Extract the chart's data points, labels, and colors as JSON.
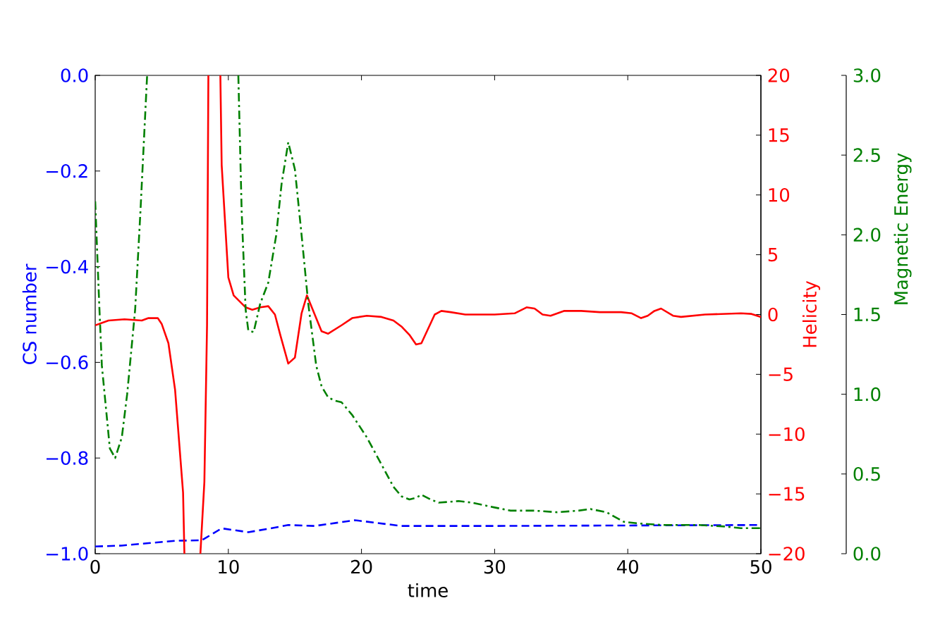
{
  "chart_data": {
    "type": "line",
    "xlabel": "time",
    "ylabel": "CS number",
    "y2label": "Helicity",
    "y3label": "Magnetic Energy",
    "xlim": [
      0,
      50
    ],
    "xticks": [
      0,
      10,
      20,
      30,
      40,
      50
    ],
    "ylim": [
      -1,
      0
    ],
    "yticks": [
      {
        "value": -1,
        "label": "−1.0"
      },
      {
        "value": -0.8,
        "label": "−0.8"
      },
      {
        "value": -0.6,
        "label": "−0.6"
      },
      {
        "value": -0.4,
        "label": "−0.4"
      },
      {
        "value": -0.2,
        "label": "−0.2"
      },
      {
        "value": 0,
        "label": "0.0"
      }
    ],
    "y2lim": [
      -20,
      20
    ],
    "y2ticks": [
      {
        "value": -20,
        "label": "−20"
      },
      {
        "value": -15,
        "label": "−15"
      },
      {
        "value": -10,
        "label": "−10"
      },
      {
        "value": -5,
        "label": "−5"
      },
      0,
      5,
      10,
      15,
      20
    ],
    "y3lim": [
      0,
      3
    ],
    "y3ticks": [
      {
        "value": 0,
        "label": "0.0"
      },
      {
        "value": 0.5,
        "label": "0.5"
      },
      {
        "value": 1,
        "label": "1.0"
      },
      {
        "value": 1.5,
        "label": "1.5"
      },
      {
        "value": 2,
        "label": "2.0"
      },
      {
        "value": 2.5,
        "label": "2.5"
      },
      {
        "value": 3,
        "label": "3.0"
      }
    ],
    "grid": false,
    "series": [
      {
        "axis": "y",
        "color": "#0000ff",
        "line_style": "dashed",
        "x": [
          0,
          2,
          4,
          6,
          8,
          9.5,
          11.5,
          13,
          14.5,
          16.5,
          19.5,
          23,
          30,
          40,
          50
        ],
        "values": [
          -0.985,
          -0.983,
          -0.978,
          -0.973,
          -0.972,
          -0.947,
          -0.955,
          -0.948,
          -0.94,
          -0.942,
          -0.93,
          -0.942,
          -0.942,
          -0.941,
          -0.94
        ]
      },
      {
        "axis": "y2",
        "color": "#ff0000",
        "line_style": "solid",
        "x": [
          0,
          1,
          2.2,
          3.5,
          4,
          4.7,
          5,
          5.5,
          6,
          6.6,
          6.7,
          7.3,
          7.9,
          8.2,
          8.4,
          8.5,
          9,
          9.4,
          9.5,
          10,
          10.4,
          11.3,
          11.8,
          12.4,
          13,
          13.5,
          13.9,
          14.5,
          15,
          15.5,
          15.9,
          17,
          17.5,
          18.5,
          19.3,
          20.4,
          21.5,
          22.4,
          23,
          23.6,
          24.1,
          24.5,
          25,
          25.5,
          26,
          26.7,
          27.8,
          30,
          31.5,
          32.4,
          33,
          33.6,
          34.2,
          35.2,
          36.5,
          37.9,
          39.5,
          40.3,
          41,
          41.5,
          42,
          42.5,
          43.4,
          44,
          45.8,
          48.5,
          49.3,
          50
        ],
        "values": [
          -0.9,
          -0.5,
          -0.4,
          -0.5,
          -0.3,
          -0.3,
          -0.8,
          -2.4,
          -6.3,
          -14.9,
          -20,
          null,
          -20,
          -14,
          -0.9,
          20,
          null,
          20,
          12.5,
          3.1,
          1.6,
          0.6,
          0.4,
          0.6,
          0.7,
          0,
          -1.7,
          -4.1,
          -3.6,
          0.1,
          1.6,
          -1.4,
          -1.6,
          -0.9,
          -0.3,
          -0.1,
          -0.2,
          -0.5,
          -1,
          -1.7,
          -2.5,
          -2.4,
          -1.2,
          0,
          0.3,
          0.2,
          0,
          0,
          0.1,
          0.6,
          0.5,
          0,
          -0.1,
          0.3,
          0.3,
          0.2,
          0.2,
          0.1,
          -0.3,
          -0.1,
          0.3,
          0.5,
          -0.1,
          -0.2,
          0,
          0.1,
          0.05,
          -0.2
        ]
      },
      {
        "axis": "y3",
        "color": "#008000",
        "line_style": "dashdot",
        "x": [
          0,
          0.3,
          0.5,
          1.1,
          1.5,
          2,
          2.4,
          3,
          3.4,
          3.9,
          7,
          10.75,
          11,
          11.3,
          11.5,
          11.9,
          12.4,
          13,
          13.6,
          14,
          14.5,
          15,
          15.5,
          16,
          16.6,
          17,
          17.5,
          18,
          18.5,
          19.3,
          20.4,
          21.5,
          22.4,
          23,
          23.6,
          24.1,
          24.5,
          25.2,
          25.8,
          27.3,
          28.3,
          30,
          31.2,
          32.3,
          33,
          34.7,
          36.3,
          37.2,
          38.4,
          39.7,
          40.8,
          42.6,
          43.7,
          45.3,
          47.4,
          48.5,
          50
        ],
        "values": [
          2.21,
          1.57,
          1.18,
          0.66,
          0.6,
          0.73,
          1,
          1.53,
          2.15,
          3,
          null,
          3,
          2.15,
          1.53,
          1.4,
          1.39,
          1.57,
          1.7,
          2,
          2.32,
          2.58,
          2.41,
          2,
          1.57,
          1.18,
          1.05,
          0.98,
          0.96,
          0.95,
          0.87,
          0.73,
          0.56,
          0.42,
          0.36,
          0.34,
          0.35,
          0.37,
          0.34,
          0.32,
          0.33,
          0.32,
          0.29,
          0.27,
          0.27,
          0.27,
          0.26,
          0.27,
          0.28,
          0.26,
          0.2,
          0.19,
          0.18,
          0.18,
          0.18,
          0.17,
          0.16,
          0.16
        ]
      }
    ]
  }
}
